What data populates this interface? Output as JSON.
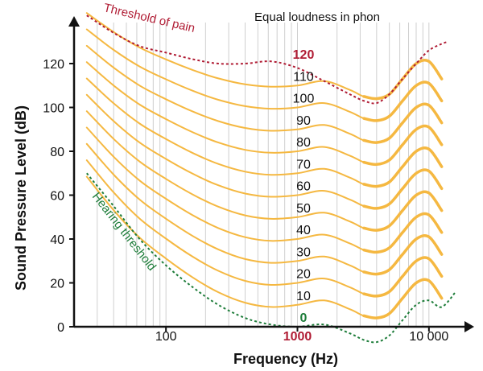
{
  "chart_data": {
    "type": "line",
    "title": "Equal loudness in phon",
    "xlabel": "Frequency (Hz)",
    "ylabel": "Sound Pressure Level (dB)",
    "x_scale": "log",
    "xlim": [
      20,
      20000
    ],
    "ylim": [
      0,
      130
    ],
    "x_tick_labels": [
      "100",
      "1000",
      "10 000"
    ],
    "x_ticks": [
      100,
      1000,
      10000
    ],
    "y_ticks": [
      0,
      20,
      40,
      60,
      80,
      100,
      120
    ],
    "y_tick_labels": [
      "0",
      "20",
      "40",
      "60",
      "80",
      "100",
      "120"
    ],
    "grid": "vertical minor lines at each frequency",
    "contour_color": "#f5b841",
    "levels": [
      {
        "phon": "0",
        "color": "#1e7d3a"
      },
      {
        "phon": "10",
        "color": "#111111"
      },
      {
        "phon": "20",
        "color": "#111111"
      },
      {
        "phon": "30",
        "color": "#111111"
      },
      {
        "phon": "40",
        "color": "#111111"
      },
      {
        "phon": "50",
        "color": "#111111"
      },
      {
        "phon": "60",
        "color": "#111111"
      },
      {
        "phon": "70",
        "color": "#111111"
      },
      {
        "phon": "80",
        "color": "#111111"
      },
      {
        "phon": "90",
        "color": "#111111"
      },
      {
        "phon": "100",
        "color": "#111111"
      },
      {
        "phon": "110",
        "color": "#111111"
      },
      {
        "phon": "120",
        "color": "#b01c34"
      }
    ],
    "contour_shape_db_offset_by_frequency": {
      "x": [
        25,
        40,
        63,
        100,
        160,
        250,
        400,
        630,
        1000,
        1600,
        2500,
        3200,
        4000,
        5000,
        6300,
        8000,
        10000,
        12500
      ],
      "offset": [
        61,
        45,
        32,
        22,
        13,
        6,
        1,
        -1,
        0,
        2,
        -2,
        -5,
        -6,
        -4,
        3,
        10,
        11,
        3
      ]
    },
    "threshold_of_pain": {
      "label": "Threshold of pain",
      "color": "#b01c34",
      "x": [
        25,
        40,
        63,
        100,
        160,
        250,
        400,
        630,
        1000,
        1600,
        2500,
        3200,
        4000,
        5000,
        6300,
        8000,
        10000,
        12500,
        14000
      ],
      "y": [
        142,
        134,
        128,
        125,
        122,
        120,
        120,
        121,
        118,
        112,
        106,
        103,
        102,
        106,
        113,
        120,
        126,
        129,
        130
      ]
    },
    "hearing_threshold": {
      "label": "Hearing threshold",
      "color": "#1e7d3a",
      "x": [
        25,
        40,
        63,
        100,
        160,
        250,
        400,
        630,
        1000,
        1600,
        2500,
        3200,
        4000,
        5000,
        6300,
        8000,
        10000,
        12500,
        16000
      ],
      "y": [
        70,
        55,
        40,
        28,
        18,
        10,
        4,
        1,
        0,
        1,
        -3,
        -6,
        -7,
        -4,
        3,
        10,
        12,
        9,
        16
      ]
    }
  }
}
